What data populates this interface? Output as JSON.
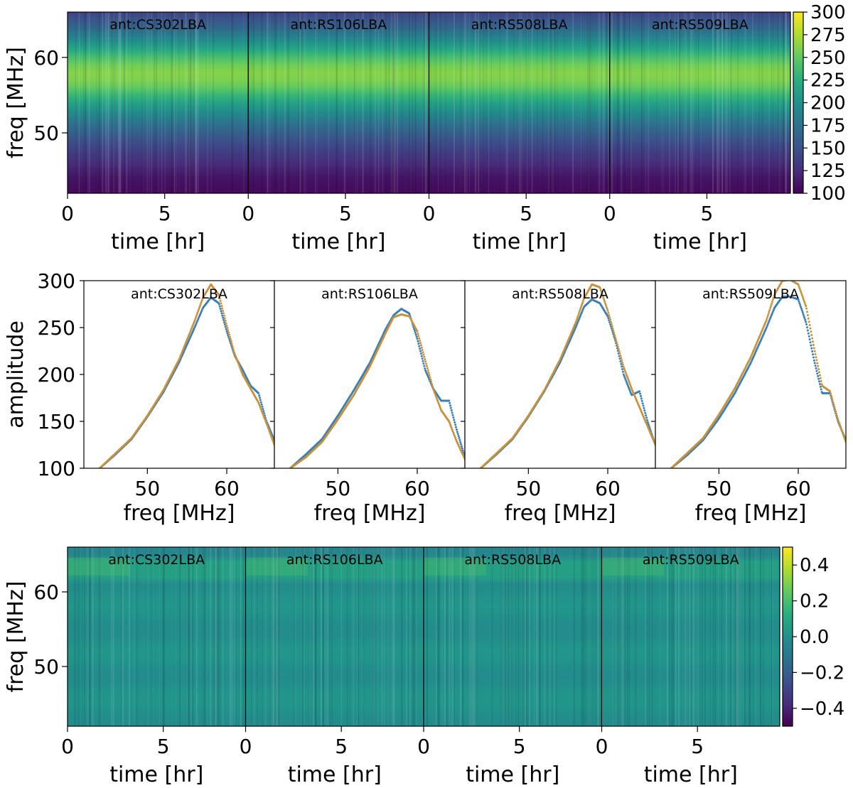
{
  "colors": {
    "viridis": [
      "#440154",
      "#472d7b",
      "#3b528b",
      "#2c728e",
      "#21918c",
      "#28ae80",
      "#5ec962",
      "#addc30",
      "#fde725"
    ],
    "series_blue": "#3a7fb8",
    "series_orange": "#c8913a"
  },
  "chart_data": [
    {
      "type": "heatmap",
      "rows": 1,
      "panels": [
        {
          "title": "ant:CS302LBA",
          "xlabel": "time [hr]"
        },
        {
          "title": "ant:RS106LBA",
          "xlabel": "time [hr]"
        },
        {
          "title": "ant:RS508LBA",
          "xlabel": "time [hr]"
        },
        {
          "title": "ant:RS509LBA",
          "xlabel": "time [hr]"
        }
      ],
      "ylabel": "freq [MHz]",
      "xlim": [
        0,
        9.3
      ],
      "ylim": [
        42,
        66
      ],
      "xticks": [
        0,
        5
      ],
      "yticks": [
        50,
        60
      ],
      "color_range": [
        100,
        300
      ],
      "colorbar_ticks": [
        "100",
        "125",
        "150",
        "175",
        "200",
        "225",
        "250",
        "275",
        "300"
      ],
      "profile": {
        "freq": [
          42,
          44,
          46,
          48,
          50,
          52,
          54,
          56,
          57,
          58,
          59,
          60,
          62,
          64,
          66
        ],
        "value": [
          105,
          110,
          125,
          140,
          160,
          185,
          215,
          250,
          260,
          262,
          255,
          240,
          200,
          165,
          140
        ]
      }
    },
    {
      "type": "scatter",
      "panels": [
        {
          "title": "ant:CS302LBA",
          "xlabel": "freq [MHz]"
        },
        {
          "title": "ant:RS106LBA",
          "xlabel": "freq [MHz]"
        },
        {
          "title": "ant:RS508LBA",
          "xlabel": "freq [MHz]"
        },
        {
          "title": "ant:RS509LBA",
          "xlabel": "freq [MHz]"
        }
      ],
      "ylabel": "amplitude",
      "xlim": [
        42,
        66
      ],
      "ylim": [
        100,
        300
      ],
      "xticks": [
        50,
        60
      ],
      "yticks": [
        100,
        150,
        200,
        250,
        300
      ],
      "series": [
        {
          "color": "#3a7fb8",
          "x": [
            44,
            46,
            48,
            50,
            52,
            54,
            56,
            57,
            58,
            59,
            60,
            61,
            62,
            63,
            64,
            65,
            66
          ],
          "y_per_panel": [
            [
              100,
              115,
              131,
              155,
              181,
              213,
              251,
              271,
              282,
              276,
              246,
              220,
              205,
              188,
              180,
              150,
              130
            ],
            [
              100,
              115,
              131,
              156,
              183,
              212,
              248,
              263,
              270,
              265,
              238,
              205,
              185,
              172,
              172,
              140,
              112
            ],
            [
              100,
              115,
              131,
              155,
              182,
              213,
              251,
              272,
              280,
              276,
              262,
              235,
              200,
              178,
              182,
              150,
              125
            ],
            [
              100,
              114,
              130,
              153,
              180,
              212,
              250,
              271,
              283,
              283,
              280,
              255,
              215,
              180,
              180,
              150,
              130
            ]
          ]
        },
        {
          "color": "#c8913a",
          "x": [
            44,
            46,
            48,
            50,
            52,
            54,
            56,
            57,
            58,
            59,
            60,
            61,
            62,
            63,
            64,
            65,
            66
          ],
          "y_per_panel": [
            [
              100,
              116,
              132,
              156,
              183,
              216,
              258,
              282,
              296,
              285,
              252,
              222,
              200,
              185,
              170,
              148,
              125
            ],
            [
              100,
              112,
              128,
              152,
              178,
              208,
              244,
              261,
              264,
              262,
              246,
              215,
              185,
              162,
              150,
              128,
              110
            ],
            [
              100,
              116,
              132,
              156,
              183,
              216,
              256,
              281,
              296,
              293,
              268,
              238,
              208,
              185,
              165,
              145,
              125
            ],
            [
              100,
              116,
              132,
              157,
              185,
              218,
              258,
              285,
              300,
              301,
              296,
              272,
              228,
              188,
              182,
              152,
              128
            ]
          ]
        }
      ]
    },
    {
      "type": "heatmap",
      "rows": 3,
      "panels": [
        {
          "title": "ant:CS302LBA",
          "xlabel": "time [hr]"
        },
        {
          "title": "ant:RS106LBA",
          "xlabel": "time [hr]"
        },
        {
          "title": "ant:RS508LBA",
          "xlabel": "time [hr]"
        },
        {
          "title": "ant:RS509LBA",
          "xlabel": "time [hr]"
        }
      ],
      "ylabel": "freq [MHz]",
      "xlim": [
        0,
        9.3
      ],
      "ylim": [
        42,
        66
      ],
      "xticks": [
        0,
        5
      ],
      "yticks": [
        50,
        60
      ],
      "color_range": [
        -0.5,
        0.5
      ],
      "colorbar_ticks": [
        "−0.4",
        "−0.2",
        "0.0",
        "0.2",
        "0.4"
      ],
      "colorbar_tick_values": [
        -0.4,
        -0.2,
        0.0,
        0.2,
        0.4
      ]
    }
  ]
}
